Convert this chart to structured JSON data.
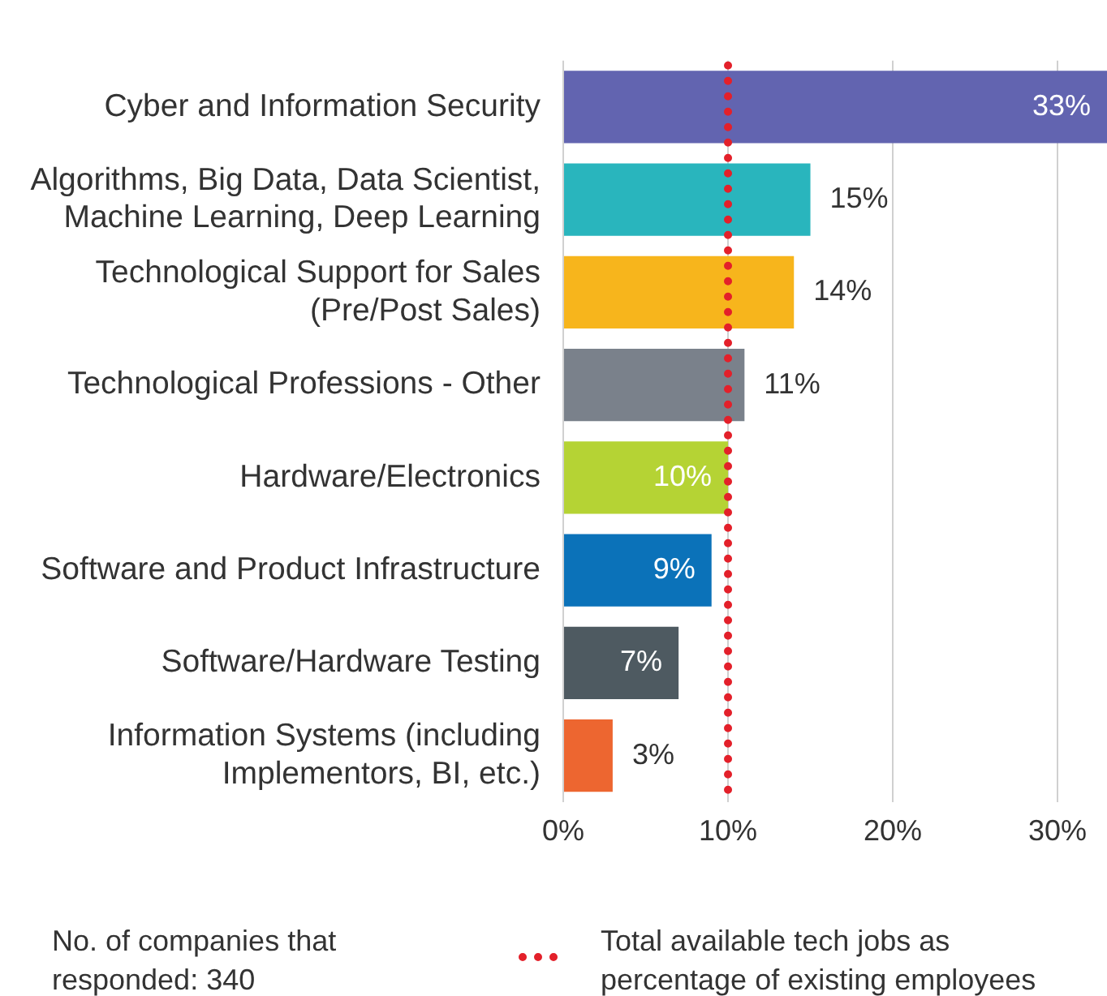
{
  "chart_data": {
    "type": "bar",
    "orientation": "horizontal",
    "categories": [
      "Cyber and Information Security",
      "Algorithms, Big Data, Data Scientist, Machine Learning, Deep Learning",
      "Technological Support for Sales (Pre/Post Sales)",
      "Technological Professions - Other",
      "Hardware/Electronics",
      "Software and Product Infrastructure",
      "Software/Hardware Testing",
      "Information Systems (including Implementors, BI, etc.)"
    ],
    "values": [
      33,
      15,
      14,
      11,
      10,
      9,
      7,
      3
    ],
    "colors": [
      "#6264b0",
      "#29b5bd",
      "#f7b51c",
      "#7a818b",
      "#b5d334",
      "#0b72b9",
      "#4e5a61",
      "#ed6630"
    ],
    "value_labels": [
      "33%",
      "15%",
      "14%",
      "11%",
      "10%",
      "9%",
      "7%",
      "3%"
    ],
    "xlim": [
      0,
      33
    ],
    "xticks": [
      {
        "value": 0,
        "label": "0%"
      },
      {
        "value": 10,
        "label": "10%"
      },
      {
        "value": 20,
        "label": "20%"
      },
      {
        "value": 30,
        "label": "30%"
      }
    ],
    "grid": "x",
    "ref_lines": [
      {
        "axis": "x",
        "value": 10,
        "label": "Total available tech jobs as percentage of existing employees",
        "color": "#e3202a",
        "line_style": "dotted"
      }
    ],
    "legend": "bottom",
    "annotations": [
      "No. of companies that responded: 340"
    ]
  }
}
